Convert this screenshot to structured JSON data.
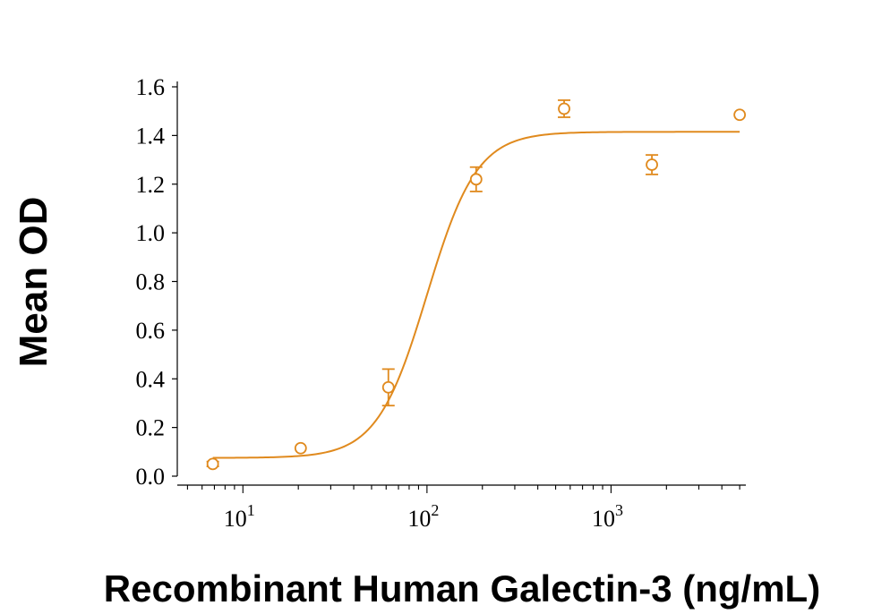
{
  "chart_data": {
    "type": "scatter",
    "xlabel": "Recombinant Human Galectin-3 (ng/mL)",
    "ylabel": "Mean OD",
    "x_scale": "log",
    "xlim": [
      4.4,
      5400
    ],
    "ylim": [
      0,
      1.6
    ],
    "x_ticks": [
      {
        "value": 10,
        "base": "10",
        "exp": "1"
      },
      {
        "value": 100,
        "base": "10",
        "exp": "2"
      },
      {
        "value": 1000,
        "base": "10",
        "exp": "3"
      }
    ],
    "y_ticks": [
      "0.0",
      "0.2",
      "0.4",
      "0.6",
      "0.8",
      "1.0",
      "1.2",
      "1.4",
      "1.6"
    ],
    "color": "#E08A1E",
    "points": [
      {
        "x": 6.86,
        "y": 0.05,
        "err": 0.01
      },
      {
        "x": 20.6,
        "y": 0.115,
        "err": 0.0
      },
      {
        "x": 61.7,
        "y": 0.365,
        "err": 0.075
      },
      {
        "x": 185,
        "y": 1.22,
        "err": 0.05
      },
      {
        "x": 556,
        "y": 1.51,
        "err": 0.035
      },
      {
        "x": 1667,
        "y": 1.28,
        "err": 0.04
      },
      {
        "x": 5000,
        "y": 1.485,
        "err": 0.0
      }
    ],
    "fit_curve": {
      "model": "4PL",
      "bottom": 0.075,
      "top": 1.415,
      "ec50": 100,
      "hill": 3.2,
      "x_range": [
        6.86,
        5000
      ]
    }
  }
}
